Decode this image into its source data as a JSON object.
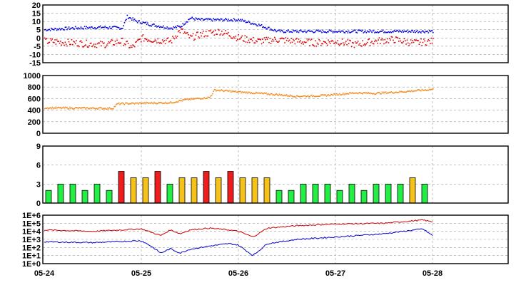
{
  "x_axis": {
    "tick_labels": [
      "05-24",
      "05-25",
      "05-26",
      "05-27",
      "05-28"
    ],
    "range_days": [
      0,
      5
    ]
  },
  "chart_data": [
    {
      "type": "scatter",
      "ylim": [
        -15,
        20
      ],
      "yticks": [
        "20",
        "15",
        "10",
        "5",
        "0",
        "-5",
        "-10",
        "-15"
      ],
      "grid": true,
      "series": [
        {
          "color": "#0000dd",
          "x": [
            0,
            0.3,
            0.6,
            0.8,
            0.85,
            0.95,
            1.1,
            1.3,
            1.4,
            1.5,
            1.6,
            1.8,
            2.0,
            2.2,
            2.4,
            2.6,
            2.8,
            3.0,
            3.2,
            3.4,
            3.6,
            3.8,
            4.0
          ],
          "y": [
            5,
            6,
            6.5,
            6,
            13,
            10,
            8,
            6,
            7,
            12,
            11,
            11,
            11,
            8,
            4,
            4,
            4,
            4,
            4,
            4,
            4,
            4,
            4
          ]
        },
        {
          "color": "#dd0000",
          "x": [
            0,
            0.3,
            0.6,
            0.8,
            0.9,
            1.0,
            1.1,
            1.3,
            1.4,
            1.5,
            1.6,
            1.8,
            2.0,
            2.2,
            2.4,
            2.6,
            2.8,
            3.0,
            3.2,
            3.4,
            3.6,
            3.8,
            4.0
          ],
          "y": [
            -2,
            -3,
            -4,
            -2,
            -6,
            0,
            -1,
            -2,
            5,
            0,
            2,
            4,
            0,
            -2,
            -1,
            -2,
            -3,
            -2,
            -4,
            -2,
            -1,
            -3,
            -2
          ]
        }
      ]
    },
    {
      "type": "scatter",
      "ylim": [
        0,
        1000
      ],
      "yticks": [
        "1000",
        "800",
        "600",
        "400",
        "200",
        "0"
      ],
      "grid": true,
      "series": [
        {
          "color": "#f08c1e",
          "x": [
            0,
            0.7,
            0.75,
            1.3,
            1.45,
            1.7,
            1.75,
            1.95,
            2.3,
            2.6,
            2.85,
            3.2,
            3.4,
            3.7,
            4.0
          ],
          "y": [
            440,
            430,
            510,
            530,
            580,
            620,
            750,
            720,
            680,
            640,
            650,
            700,
            690,
            720,
            760
          ]
        }
      ]
    },
    {
      "type": "bar",
      "ylim": [
        0,
        9
      ],
      "yticks": [
        "9",
        "6",
        "3",
        "0"
      ],
      "grid": true,
      "bar_slot_hours": 3,
      "values": [
        2,
        3,
        3,
        2,
        3,
        2,
        5,
        4,
        4,
        5,
        3,
        4,
        4,
        5,
        4,
        5,
        4,
        4,
        4,
        2,
        2,
        3,
        3,
        3,
        2,
        3,
        2,
        3,
        3,
        3,
        4,
        3
      ],
      "level_colors": {
        "green": "#22ee44",
        "yellow": "#f5c21a",
        "red": "#ee1c1c"
      },
      "color_rule": "value<4 green, value=4 yellow, value>=5 red"
    },
    {
      "type": "line",
      "scale": "log",
      "ylim": [
        1,
        1000000
      ],
      "yticks": [
        "1E+6",
        "1E+5",
        "1E+4",
        "1E+3",
        "1E+2",
        "1E+1",
        "1E+0"
      ],
      "grid": true,
      "series": [
        {
          "color": "#cc0000",
          "x": [
            0,
            0.5,
            1.0,
            1.1,
            1.2,
            1.3,
            1.4,
            1.5,
            1.7,
            1.9,
            2.0,
            2.15,
            2.3,
            2.6,
            3.0,
            3.5,
            3.9,
            4.0
          ],
          "y": [
            15000,
            10000,
            20000,
            8000,
            3000,
            15000,
            5000,
            15000,
            25000,
            15000,
            10000,
            2000,
            25000,
            50000,
            80000,
            100000,
            250000,
            150000
          ]
        },
        {
          "color": "#0000cc",
          "x": [
            0,
            0.5,
            1.0,
            1.1,
            1.2,
            1.3,
            1.4,
            1.5,
            1.7,
            1.9,
            2.0,
            2.15,
            2.3,
            2.6,
            3.0,
            3.5,
            3.9,
            4.0
          ],
          "y": [
            500,
            400,
            700,
            150,
            20,
            70,
            20,
            60,
            150,
            300,
            200,
            10,
            300,
            1000,
            2000,
            5000,
            20000,
            3000
          ]
        }
      ]
    }
  ]
}
